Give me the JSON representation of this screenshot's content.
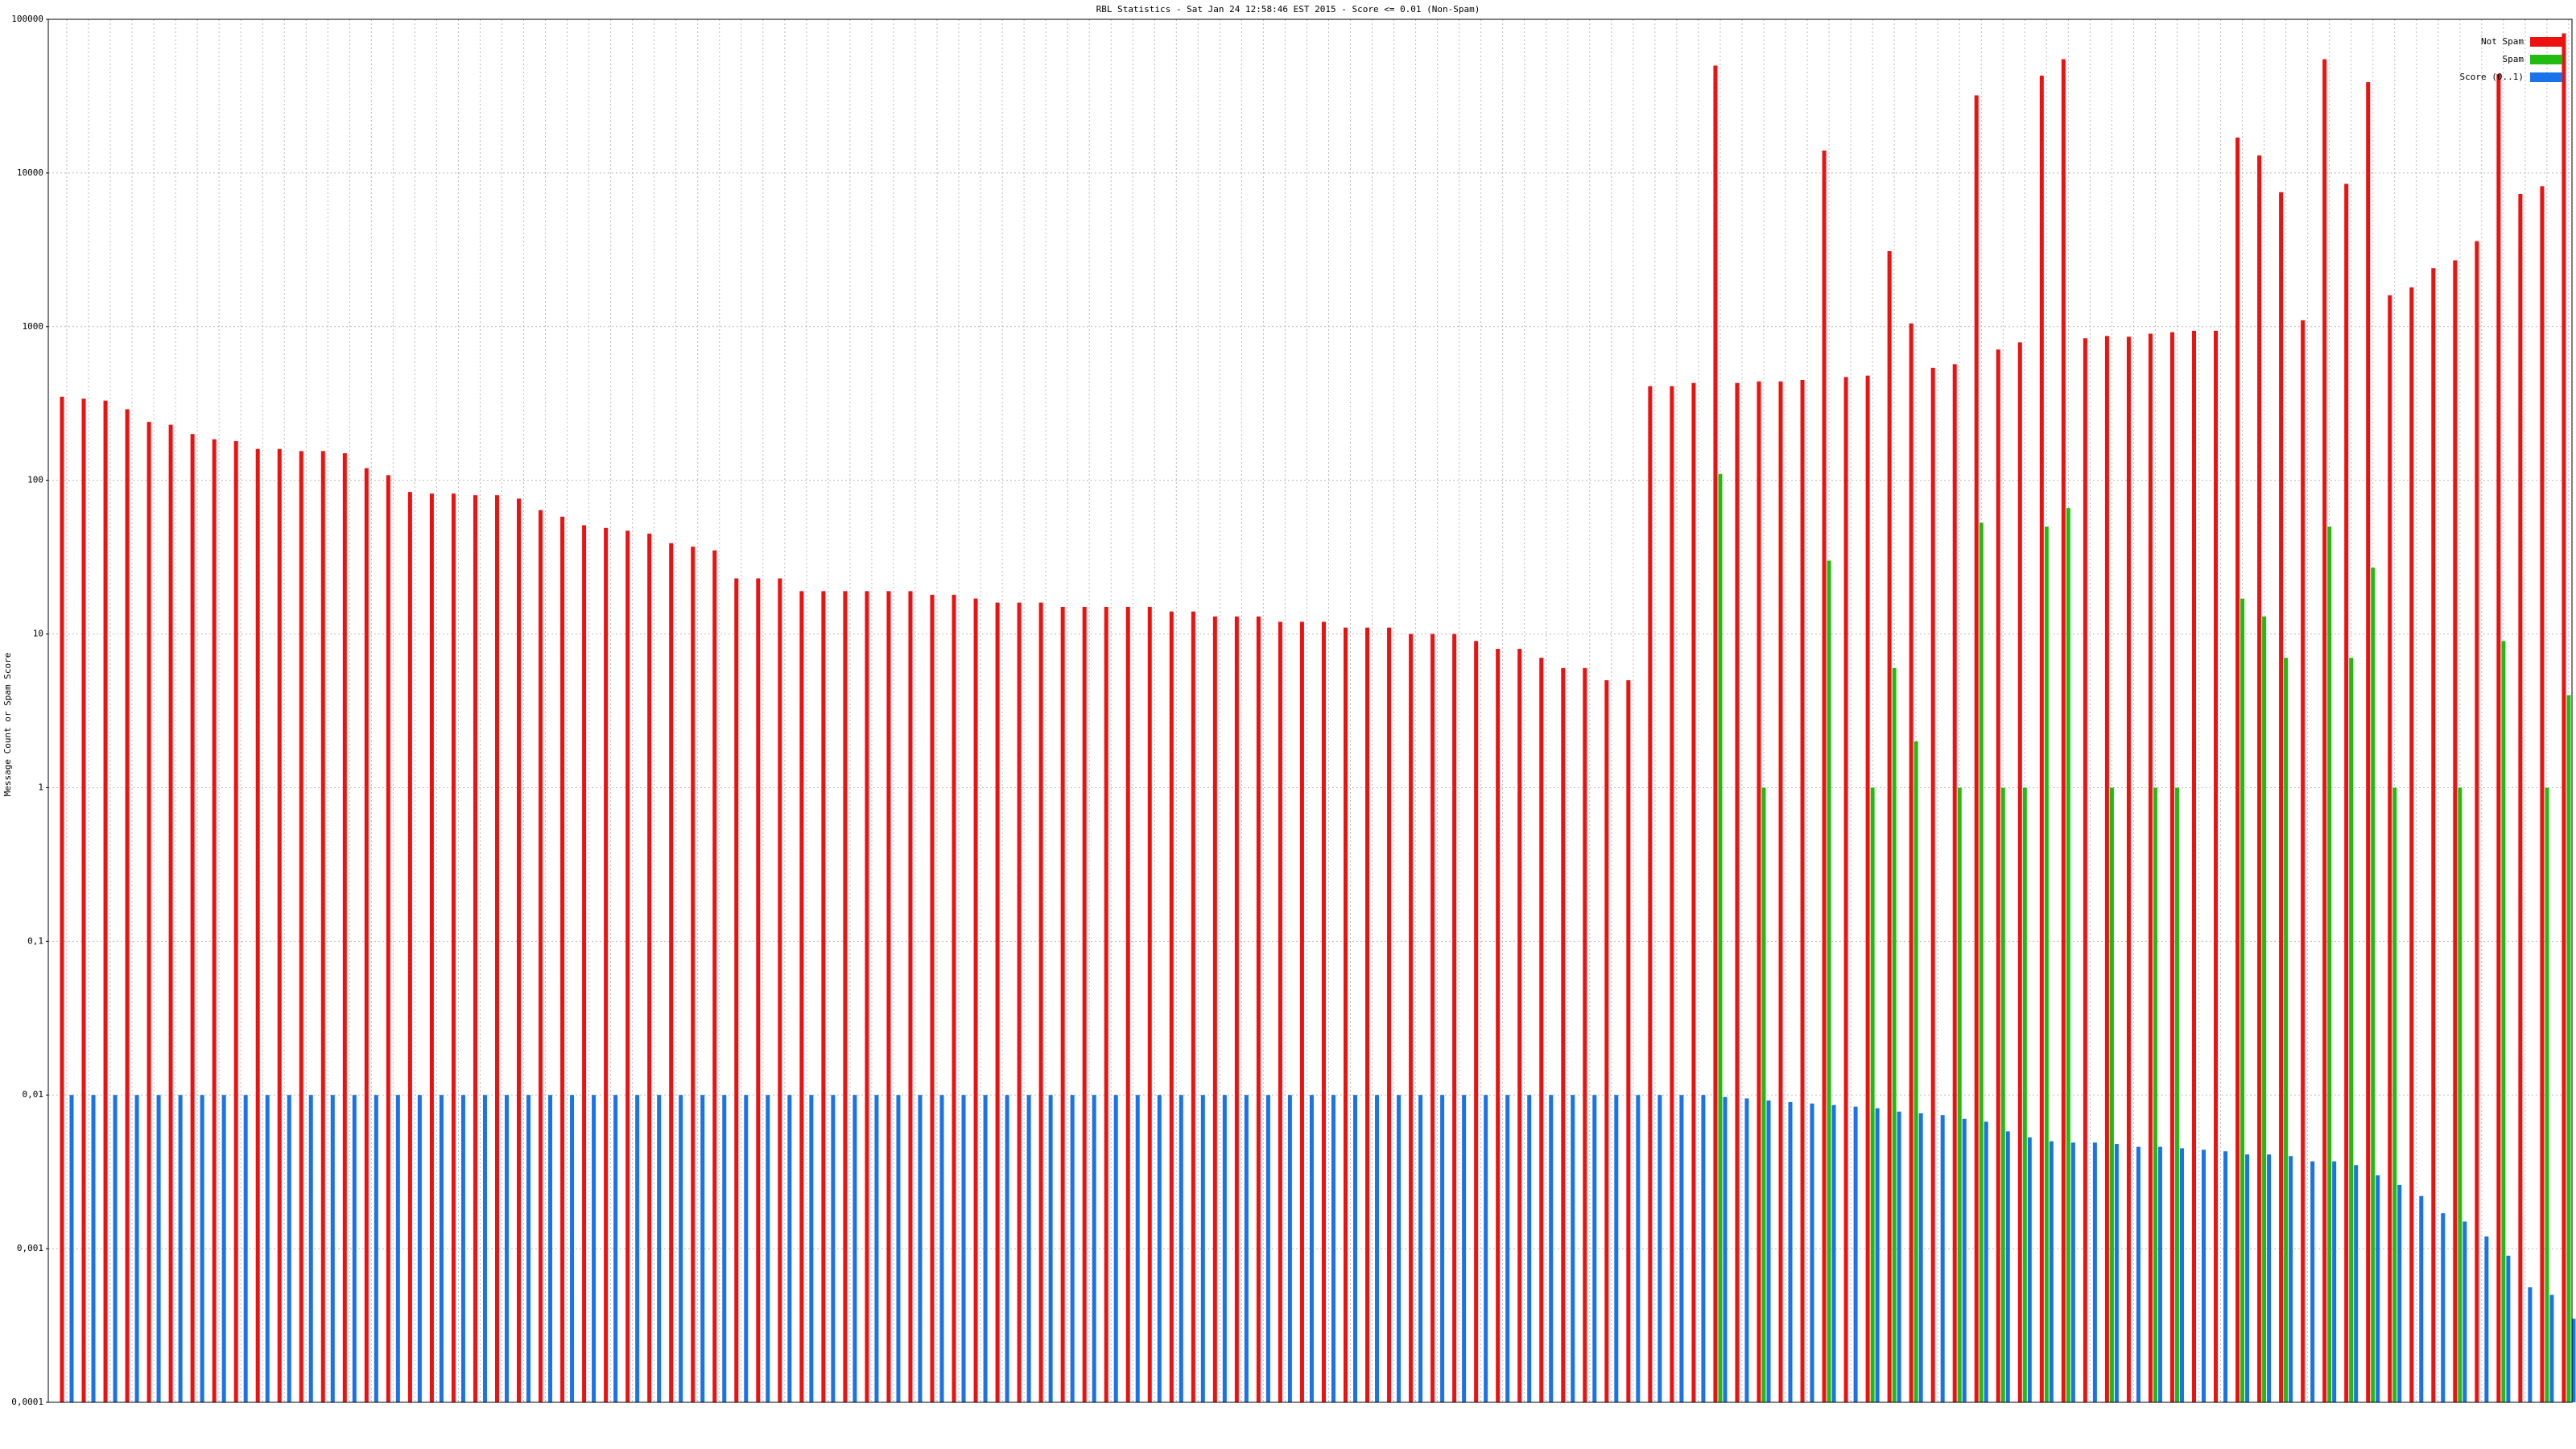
{
  "chart_data": {
    "type": "bar",
    "title": "RBL Statistics - Sat Jan 24 12:58:46 EST 2015 - Score <= 0.01 (Non-Spam)",
    "y_label": "Message Count or Spam Score",
    "log_scale": true,
    "grid": true,
    "legend": "top-right",
    "ylim": [
      0.0001,
      100000
    ],
    "yticks": [
      {
        "value": 0.0001,
        "label": "0,0001"
      },
      {
        "value": 0.001,
        "label": "0,001"
      },
      {
        "value": 0.01,
        "label": "0,01"
      },
      {
        "value": 0.1,
        "label": "0,1"
      },
      1,
      10,
      100,
      1000,
      10000,
      100000
    ],
    "categories": [
      null,
      null,
      null,
      null,
      null,
      null,
      null,
      null,
      null,
      null,
      null,
      null,
      null,
      null,
      null,
      null,
      null,
      null,
      null,
      null,
      null,
      null,
      null,
      null,
      null,
      null,
      null,
      null,
      null,
      null,
      null,
      null,
      null,
      null,
      null,
      null,
      null,
      null,
      null,
      null,
      null,
      null,
      null,
      null,
      null,
      null,
      null,
      null,
      null,
      null,
      null,
      null,
      null,
      null,
      null,
      null,
      null,
      null,
      null,
      null,
      null,
      null,
      null,
      null,
      null,
      null,
      null,
      null,
      null,
      null,
      null,
      null,
      null,
      null,
      null,
      null,
      null,
      null,
      null,
      null,
      null,
      null,
      null,
      null,
      null,
      null,
      null,
      null,
      null,
      null,
      null,
      null,
      null,
      null,
      null,
      null,
      null,
      null,
      null,
      null,
      null,
      null,
      null,
      null,
      null,
      null,
      null,
      null,
      null,
      null,
      null,
      null,
      null,
      null,
      null,
      null
    ],
    "series": [
      {
        "name": "Not Spam",
        "color": "#ee1111",
        "values": [
          350,
          340,
          330,
          290,
          240,
          230,
          200,
          185,
          180,
          160,
          160,
          155,
          155,
          150,
          120,
          108,
          84,
          82,
          82,
          80,
          80,
          76,
          64,
          58,
          51,
          49,
          47,
          45,
          39,
          37,
          35,
          23,
          23,
          23,
          19,
          19,
          19,
          19,
          19,
          19,
          18,
          18,
          17,
          16,
          16,
          16,
          15,
          15,
          15,
          15,
          15,
          14,
          14,
          13,
          13,
          13,
          12,
          12,
          12,
          11,
          11,
          11,
          10,
          10,
          10,
          9,
          8,
          8,
          7,
          6,
          6,
          5,
          5,
          410,
          410,
          430,
          50000,
          430,
          440,
          440,
          450,
          14000,
          470,
          480,
          3100,
          1050,
          540,
          570,
          32000,
          710,
          790,
          43000,
          55000,
          840,
          870,
          860,
          900,
          920,
          940,
          940,
          17000,
          13000,
          7500,
          1100,
          55000,
          8500,
          39000,
          1600,
          1800,
          2400,
          2700,
          3600,
          44000,
          7300,
          8200,
          81000
        ]
      },
      {
        "name": "Spam",
        "color": "#22bb11",
        "values": [
          null,
          null,
          null,
          null,
          null,
          null,
          null,
          null,
          null,
          null,
          null,
          null,
          null,
          null,
          null,
          null,
          null,
          null,
          null,
          null,
          null,
          null,
          null,
          null,
          null,
          null,
          null,
          null,
          null,
          null,
          null,
          null,
          null,
          null,
          null,
          null,
          null,
          null,
          null,
          null,
          null,
          null,
          null,
          null,
          null,
          null,
          null,
          null,
          null,
          null,
          null,
          null,
          null,
          null,
          null,
          null,
          null,
          null,
          null,
          null,
          null,
          null,
          null,
          null,
          null,
          null,
          null,
          null,
          null,
          null,
          null,
          null,
          null,
          null,
          null,
          null,
          110,
          null,
          1,
          null,
          null,
          30,
          null,
          1,
          6,
          2,
          null,
          1,
          53,
          1,
          1,
          50,
          66,
          null,
          1,
          null,
          1,
          1,
          null,
          null,
          17,
          13,
          7,
          null,
          50,
          7,
          27,
          1,
          null,
          null,
          1,
          null,
          9,
          null,
          1,
          4
        ]
      },
      {
        "name": "Score (0..1)",
        "color": "#1a73e8",
        "values": [
          0.01,
          0.01,
          0.01,
          0.01,
          0.01,
          0.01,
          0.01,
          0.01,
          0.01,
          0.01,
          0.01,
          0.01,
          0.01,
          0.01,
          0.01,
          0.01,
          0.01,
          0.01,
          0.01,
          0.01,
          0.01,
          0.01,
          0.01,
          0.01,
          0.01,
          0.01,
          0.01,
          0.01,
          0.01,
          0.01,
          0.01,
          0.01,
          0.01,
          0.01,
          0.01,
          0.01,
          0.01,
          0.01,
          0.01,
          0.01,
          0.01,
          0.01,
          0.01,
          0.01,
          0.01,
          0.01,
          0.01,
          0.01,
          0.01,
          0.01,
          0.01,
          0.01,
          0.01,
          0.01,
          0.01,
          0.01,
          0.01,
          0.01,
          0.01,
          0.01,
          0.01,
          0.01,
          0.01,
          0.01,
          0.01,
          0.01,
          0.01,
          0.01,
          0.01,
          0.01,
          0.01,
          0.01,
          0.01,
          0.01,
          0.01,
          0.01,
          0.0097,
          0.0095,
          0.0092,
          0.009,
          0.0088,
          0.0086,
          0.0084,
          0.0082,
          0.0078,
          0.0076,
          0.0074,
          0.007,
          0.0067,
          0.0058,
          0.0053,
          0.005,
          0.0049,
          0.0049,
          0.0048,
          0.0046,
          0.0046,
          0.0045,
          0.0044,
          0.0043,
          0.0041,
          0.0041,
          0.004,
          0.0037,
          0.0037,
          0.0035,
          0.003,
          0.0026,
          0.0022,
          0.0017,
          0.0015,
          0.0012,
          0.0009,
          0.00056,
          0.0005,
          0.00035
        ]
      }
    ]
  }
}
